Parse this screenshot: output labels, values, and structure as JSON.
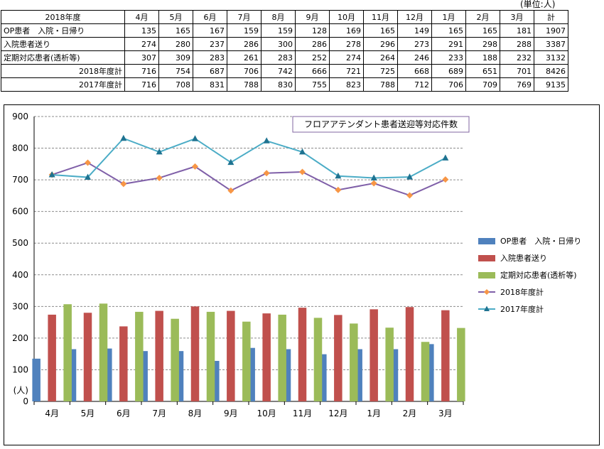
{
  "unit_label": "(単位:人)",
  "table": {
    "corner": "2018年度",
    "months": [
      "4月",
      "5月",
      "6月",
      "7月",
      "8月",
      "9月",
      "10月",
      "11月",
      "12月",
      "1月",
      "2月",
      "3月"
    ],
    "total_header": "計",
    "rows": [
      {
        "label": "OP患者　入院・日帰り",
        "values": [
          "135",
          "165",
          "167",
          "159",
          "159",
          "128",
          "169",
          "165",
          "149",
          "165",
          "165",
          "181"
        ],
        "total": "1907"
      },
      {
        "label": "入院患者送り",
        "values": [
          "274",
          "280",
          "237",
          "286",
          "300",
          "286",
          "278",
          "296",
          "273",
          "291",
          "298",
          "288"
        ],
        "total": "3387"
      },
      {
        "label": "定期対応患者(透析等)",
        "values": [
          "307",
          "309",
          "283",
          "261",
          "283",
          "252",
          "274",
          "264",
          "246",
          "233",
          "188",
          "232"
        ],
        "total": "3132"
      },
      {
        "label": "2018年度計",
        "values": [
          "716",
          "754",
          "687",
          "706",
          "742",
          "666",
          "721",
          "725",
          "668",
          "689",
          "651",
          "701"
        ],
        "total": "8426"
      },
      {
        "label": "2017年度計",
        "values": [
          "716",
          "708",
          "831",
          "788",
          "830",
          "755",
          "823",
          "788",
          "712",
          "706",
          "709",
          "769"
        ],
        "total": "9135"
      }
    ]
  },
  "chart_data": {
    "type": "bar",
    "title": "フロアアテンダント患者送迎等対応件数",
    "ylabel": "(人)",
    "ylim": [
      0,
      900
    ],
    "yticks": [
      "0",
      "100",
      "200",
      "300",
      "400",
      "500",
      "600",
      "700",
      "800",
      "900"
    ],
    "grid": true,
    "legend_position": "right",
    "categories": [
      "4月",
      "5月",
      "6月",
      "7月",
      "8月",
      "9月",
      "10月",
      "11月",
      "12月",
      "1月",
      "2月",
      "3月"
    ],
    "series": [
      {
        "name": "OP患者　入院・日帰り",
        "kind": "bar",
        "color": "#4F81BD",
        "values": [
          135,
          165,
          167,
          159,
          159,
          128,
          169,
          165,
          149,
          165,
          165,
          181
        ]
      },
      {
        "name": "入院患者送り",
        "kind": "bar",
        "color": "#C0504D",
        "values": [
          274,
          280,
          237,
          286,
          300,
          286,
          278,
          296,
          273,
          291,
          298,
          288
        ]
      },
      {
        "name": "定期対応患者(透析等)",
        "kind": "bar",
        "color": "#9BBB59",
        "values": [
          307,
          309,
          283,
          261,
          283,
          252,
          274,
          264,
          246,
          233,
          188,
          232
        ]
      },
      {
        "name": "2018年度計",
        "kind": "line",
        "marker": "diamond",
        "color": "#7F5FA8",
        "marker_color": "#F79646",
        "values": [
          716,
          754,
          687,
          706,
          742,
          666,
          721,
          725,
          668,
          689,
          651,
          701
        ]
      },
      {
        "name": "2017年度計",
        "kind": "line",
        "marker": "triangle",
        "color": "#4BACC6",
        "marker_color": "#1F7391",
        "values": [
          716,
          708,
          831,
          788,
          830,
          755,
          823,
          788,
          712,
          706,
          709,
          769
        ]
      }
    ]
  }
}
